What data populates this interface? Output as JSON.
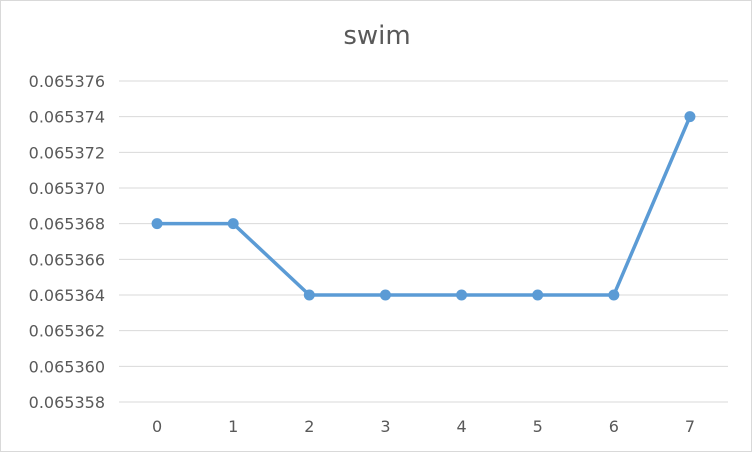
{
  "chart_data": {
    "type": "line",
    "title": "swim",
    "xlabel": "",
    "ylabel": "",
    "categories": [
      "0",
      "1",
      "2",
      "3",
      "4",
      "5",
      "6",
      "7"
    ],
    "series": [
      {
        "values": [
          0.065368,
          0.065368,
          0.065364,
          0.065364,
          0.065364,
          0.065364,
          0.065364,
          0.065374
        ]
      }
    ],
    "ylim": [
      0.065358,
      0.065376
    ],
    "yticks": [
      "0.065358",
      "0.065360",
      "0.065362",
      "0.065364",
      "0.065366",
      "0.065368",
      "0.065370",
      "0.065372",
      "0.065374",
      "0.065376"
    ],
    "grid": true,
    "legend": "none",
    "line_color": "#5b9bd5",
    "grid_color": "#d9d9d9"
  }
}
